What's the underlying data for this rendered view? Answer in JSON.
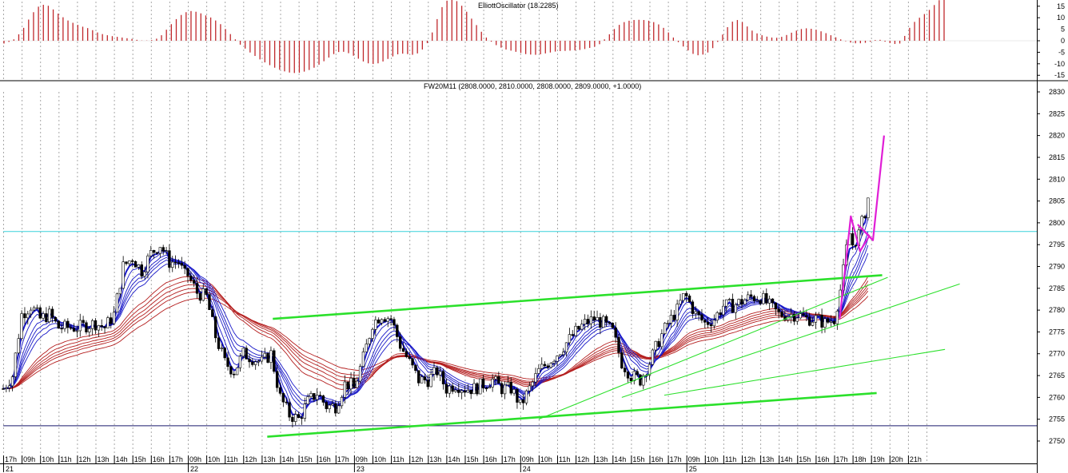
{
  "colors": {
    "background": "#ffffff",
    "grid": "#a8a8a8",
    "oscillator": "#c0282c",
    "candle_up": "#ffffff",
    "candle_down": "#000000",
    "ema_fast": "#1818c8",
    "ema_slow": "#b41e1e",
    "trendline": "#2be02b",
    "projection": "#e01ed6",
    "hline_cyan": "#38d2dc",
    "hline_navy": "#1a1a6e"
  },
  "oscillator_panel": {
    "title": "ElliottOscillator (18.2285)",
    "y_ticks": [
      "15",
      "10",
      "5",
      "0",
      "-5",
      "-10",
      "-15"
    ],
    "ylim": [
      -17,
      17
    ],
    "bar_values": [
      -1.2,
      -0.5,
      0.6,
      2.8,
      5.6,
      9.2,
      12.4,
      14.8,
      15.6,
      15.2,
      13.6,
      11.8,
      10.2,
      8.8,
      7.8,
      6.9,
      6.1,
      5.5,
      4.6,
      3.6,
      2.9,
      2.4,
      2.0,
      1.7,
      1.4,
      1.1,
      0.8,
      0.4,
      0.1,
      0.1,
      0.3,
      0.9,
      2.4,
      4.8,
      7.2,
      9.4,
      11.2,
      12.4,
      12.9,
      12.6,
      11.9,
      11.0,
      10.1,
      8.8,
      7.2,
      5.1,
      2.9,
      0.6,
      -1.7,
      -3.4,
      -5.1,
      -6.6,
      -8.1,
      -9.4,
      -10.6,
      -11.7,
      -12.6,
      -13.3,
      -13.8,
      -14.0,
      -13.9,
      -13.4,
      -12.7,
      -11.7,
      -10.4,
      -8.9,
      -7.3,
      -5.8,
      -4.9,
      -4.8,
      -5.4,
      -6.5,
      -7.8,
      -9.0,
      -9.8,
      -10.1,
      -9.8,
      -9.0,
      -7.9,
      -6.8,
      -5.9,
      -5.6,
      -5.8,
      -6.1,
      -5.5,
      -3.8,
      -1.0,
      3.6,
      9.4,
      14.6,
      17.4,
      18.0,
      17.2,
      15.2,
      12.6,
      9.6,
      6.8,
      3.9,
      1.4,
      -0.4,
      -1.9,
      -3.0,
      -3.8,
      -4.3,
      -4.8,
      -5.3,
      -5.8,
      -6.0,
      -6.1,
      -5.9,
      -5.5,
      -5.1,
      -4.7,
      -4.5,
      -4.4,
      -4.3,
      -4.2,
      -4.0,
      -3.6,
      -3.1,
      -2.6,
      -1.5,
      0.6,
      2.8,
      5.1,
      6.9,
      8.1,
      8.7,
      9.0,
      9.1,
      9.0,
      8.7,
      8.1,
      7.1,
      5.6,
      3.6,
      1.4,
      -0.6,
      -2.5,
      -4.2,
      -5.7,
      -6.3,
      -6.0,
      -5.1,
      -3.2,
      -0.5,
      2.7,
      5.9,
      8.3,
      9.0,
      8.1,
      6.2,
      4.4,
      3.2,
      2.4,
      1.8,
      1.4,
      1.3,
      1.7,
      2.5,
      3.5,
      4.4,
      5.1,
      5.4,
      5.2,
      4.8,
      4.1,
      3.3,
      2.4,
      1.5,
      0.6,
      -0.2,
      -0.8,
      -1.1,
      -1.1,
      -0.9,
      -0.4,
      0.3,
      0.4,
      -0.4,
      -1.0,
      -1.4,
      -1.2,
      2.1,
      5.6,
      8.2,
      10.0,
      11.6,
      13.4,
      15.5,
      17.6,
      18.2
    ]
  },
  "main_panel": {
    "title": "FW20M11 (2808.0000, 2810.0000, 2808.0000, 2809.0000, +1.0000)",
    "y_ticks": [
      "2830",
      "2825",
      "2820",
      "2815",
      "2810",
      "2805",
      "2800",
      "2795",
      "2790",
      "2785",
      "2780",
      "2775",
      "2770",
      "2765",
      "2760",
      "2755",
      "2750"
    ],
    "ylim": [
      2747.8,
      2832.2
    ],
    "x_tick_labels": [
      "17h",
      "09h",
      "10h",
      "11h",
      "12h",
      "13h",
      "14h",
      "15h",
      "16h",
      "17h",
      "09h",
      "10h",
      "11h",
      "12h",
      "13h",
      "14h",
      "15h",
      "16h",
      "17h",
      "09h",
      "10h",
      "11h",
      "12h",
      "13h",
      "14h",
      "15h",
      "16h",
      "17h",
      "09h",
      "10h",
      "11h",
      "12h",
      "13h",
      "14h",
      "15h",
      "16h",
      "17h",
      "09h",
      "10h",
      "11h",
      "12h",
      "13h",
      "14h",
      "15h",
      "16h",
      "17h",
      "18h",
      "19h",
      "20h",
      "21h"
    ],
    "date_labels": [
      {
        "label": "21",
        "slot": 0
      },
      {
        "label": "22",
        "slot": 10
      },
      {
        "label": "23",
        "slot": 19
      },
      {
        "label": "24",
        "slot": 28
      },
      {
        "label": "25",
        "slot": 37
      }
    ]
  },
  "chart_data": {
    "type": "candlestick",
    "instrument": "FW20M11",
    "last_bar": {
      "open": 2808.0,
      "high": 2810.0,
      "low": 2808.0,
      "close": 2809.0,
      "change": 1.0
    },
    "resolution": "10-minute bars, 6 per hour slot",
    "anchors": [
      [
        0,
        2762
      ],
      [
        0.5,
        2765
      ],
      [
        1.0,
        2779
      ],
      [
        1.5,
        2781
      ],
      [
        2.0,
        2778
      ],
      [
        2.5,
        2779
      ],
      [
        3.0,
        2776
      ],
      [
        4.0,
        2776
      ],
      [
        5.0,
        2777
      ],
      [
        5.5,
        2776
      ],
      [
        6.0,
        2779
      ],
      [
        6.5,
        2790
      ],
      [
        7.0,
        2792
      ],
      [
        7.5,
        2789
      ],
      [
        8.0,
        2793
      ],
      [
        8.5,
        2795
      ],
      [
        9.0,
        2791
      ],
      [
        9.5,
        2791
      ],
      [
        9.8,
        2788
      ],
      [
        10.0,
        2788
      ],
      [
        10.5,
        2784
      ],
      [
        11.0,
        2783
      ],
      [
        11.5,
        2774
      ],
      [
        12.0,
        2768
      ],
      [
        12.5,
        2766
      ],
      [
        13.0,
        2770
      ],
      [
        14.0,
        2768
      ],
      [
        14.5,
        2770
      ],
      [
        15.0,
        2760
      ],
      [
        15.5,
        2756
      ],
      [
        16.0,
        2755
      ],
      [
        16.5,
        2759
      ],
      [
        17.0,
        2761
      ],
      [
        17.5,
        2758
      ],
      [
        18.0,
        2758
      ],
      [
        18.5,
        2763
      ],
      [
        18.8,
        2763
      ],
      [
        19.0,
        2762
      ],
      [
        19.5,
        2769
      ],
      [
        20.0,
        2777
      ],
      [
        20.5,
        2779
      ],
      [
        21.0,
        2778
      ],
      [
        21.5,
        2772
      ],
      [
        22.0,
        2768
      ],
      [
        22.5,
        2764
      ],
      [
        23.0,
        2764
      ],
      [
        23.5,
        2766
      ],
      [
        24.0,
        2762
      ],
      [
        24.5,
        2763
      ],
      [
        25.0,
        2762
      ],
      [
        25.5,
        2762
      ],
      [
        26.0,
        2763
      ],
      [
        26.5,
        2764
      ],
      [
        27.0,
        2762
      ],
      [
        27.5,
        2762
      ],
      [
        27.8,
        2760
      ],
      [
        28.0,
        2758
      ],
      [
        28.5,
        2762
      ],
      [
        29.0,
        2766
      ],
      [
        30.0,
        2770
      ],
      [
        31.0,
        2775
      ],
      [
        31.5,
        2777
      ],
      [
        32.0,
        2778
      ],
      [
        32.5,
        2777
      ],
      [
        33.0,
        2775
      ],
      [
        33.5,
        2768
      ],
      [
        34.0,
        2765
      ],
      [
        34.5,
        2764
      ],
      [
        35.0,
        2768
      ],
      [
        35.5,
        2773
      ],
      [
        36.0,
        2777
      ],
      [
        36.5,
        2780
      ],
      [
        36.8,
        2783
      ],
      [
        37.0,
        2783
      ],
      [
        37.5,
        2779
      ],
      [
        38.0,
        2777
      ],
      [
        38.5,
        2778
      ],
      [
        39.0,
        2781
      ],
      [
        39.5,
        2781
      ],
      [
        40.0,
        2782
      ],
      [
        40.5,
        2783
      ],
      [
        41.0,
        2783
      ],
      [
        41.5,
        2781
      ],
      [
        42.0,
        2779
      ],
      [
        42.5,
        2779
      ],
      [
        43.0,
        2779
      ],
      [
        43.5,
        2778
      ],
      [
        44.0,
        2778
      ],
      [
        44.5,
        2777
      ],
      [
        45.0,
        2778
      ],
      [
        45.4,
        2786
      ],
      [
        45.8,
        2798
      ],
      [
        46.0,
        2795
      ],
      [
        46.3,
        2797
      ],
      [
        46.7,
        2803
      ],
      [
        46.85,
        2806
      ]
    ],
    "horizontal_lines": [
      {
        "name": "resistance",
        "color": "cyan",
        "y": 2798
      },
      {
        "name": "support",
        "color": "navy",
        "y": 2753.5
      }
    ],
    "trendlines": [
      {
        "color": "green",
        "bold": true,
        "from": [
          14.6,
          2778
        ],
        "to": [
          47.6,
          2788
        ]
      },
      {
        "color": "green",
        "bold": true,
        "from": [
          14.3,
          2751
        ],
        "to": [
          47.3,
          2761
        ]
      },
      {
        "color": "green",
        "bold": false,
        "from": [
          29.0,
          2755
        ],
        "to": [
          47.9,
          2787.5
        ]
      },
      {
        "color": "green",
        "bold": false,
        "from": [
          33.5,
          2760
        ],
        "to": [
          51.8,
          2786
        ]
      },
      {
        "color": "green",
        "bold": false,
        "from": [
          35.8,
          2760.5
        ],
        "to": [
          51.0,
          2771
        ]
      }
    ],
    "elliott_projection": {
      "color": "magenta",
      "points": [
        [
          45.3,
          2778
        ],
        [
          45.9,
          2801.5
        ],
        [
          46.4,
          2793.5
        ],
        [
          46.9,
          2797
        ],
        [
          46.3,
          2799.5
        ],
        [
          47.1,
          2796
        ],
        [
          47.7,
          2820
        ]
      ]
    }
  }
}
